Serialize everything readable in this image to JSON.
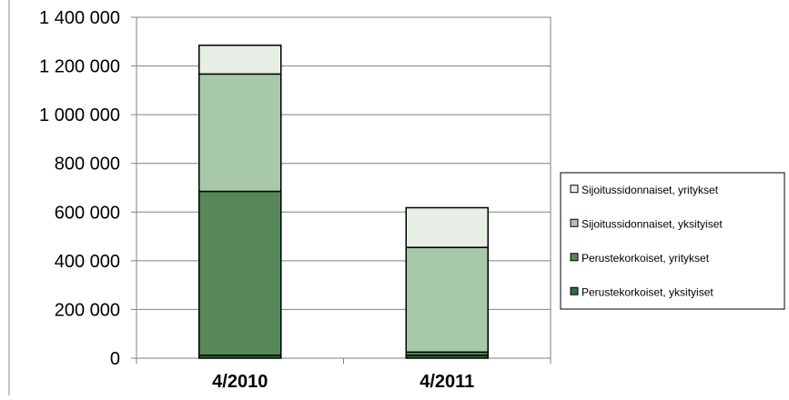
{
  "chart_data": {
    "type": "bar",
    "stacked": true,
    "categories": [
      "4/2010",
      "4/2011"
    ],
    "series": [
      {
        "name": "Perustekorkoiset, yksityiset",
        "values": [
          12000,
          12000
        ],
        "color": "#356b3a"
      },
      {
        "name": "Perustekorkoiset, yritykset",
        "values": [
          673000,
          13000
        ],
        "color": "#57885a"
      },
      {
        "name": "Sijoitussidonnaiset, yksityiset",
        "values": [
          482000,
          430000
        ],
        "color": "#a8c8aa"
      },
      {
        "name": "Sijoitussidonnaiset, yritykset",
        "values": [
          118000,
          163000
        ],
        "color": "#e6eee6"
      }
    ],
    "yticks": [
      "0",
      "200 000",
      "400 000",
      "600 000",
      "800 000",
      "1 000 000",
      "1 200 000",
      "1 400 000"
    ],
    "ylim": [
      0,
      1400000
    ],
    "grid": true,
    "legend_position": "right"
  }
}
